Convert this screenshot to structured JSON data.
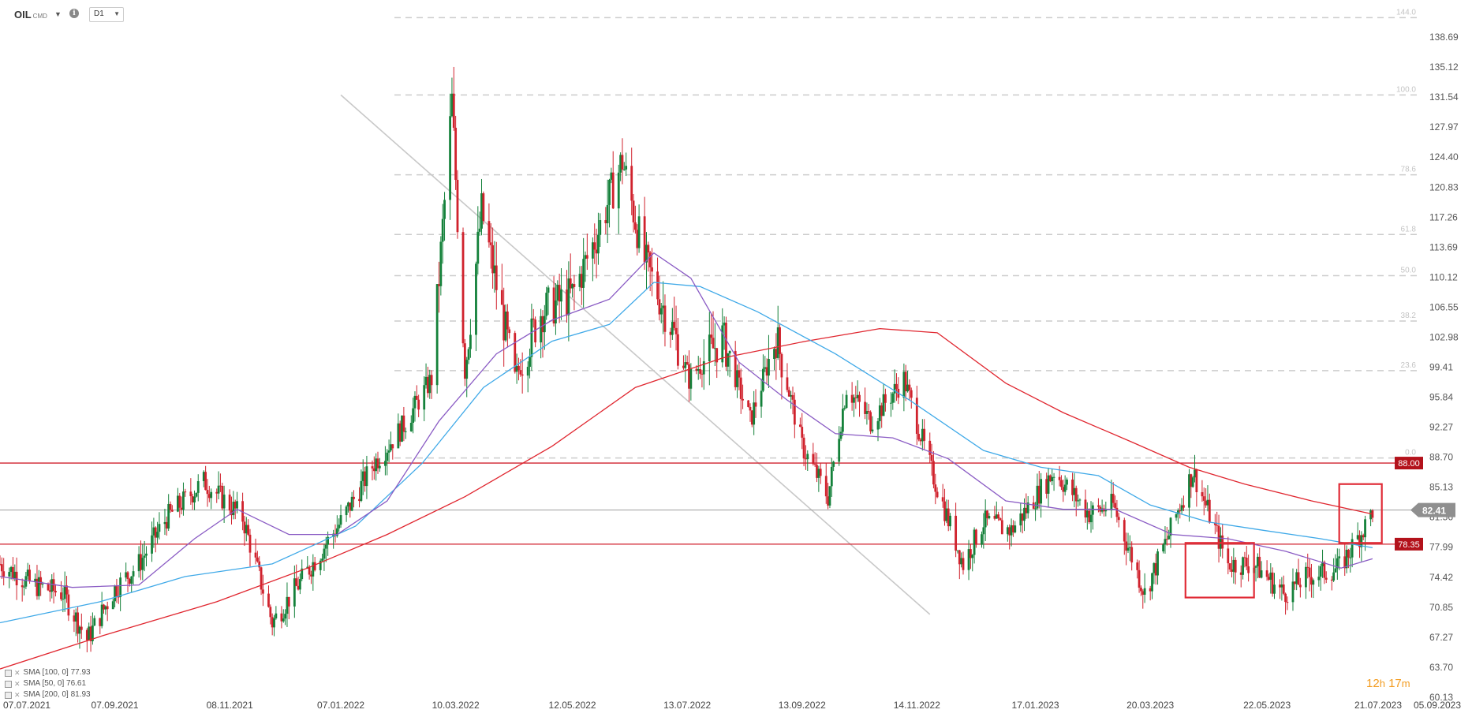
{
  "header": {
    "symbol": "OIL",
    "symbol_sub": "CMD",
    "timeframe": "D1"
  },
  "timer": {
    "hours": "12",
    "h_unit": "h",
    "minutes": "17",
    "m_unit": "m"
  },
  "colors": {
    "up": "#14813a",
    "down": "#d0222d",
    "sma50": "#8a5bc4",
    "sma100": "#3fa9e8",
    "sma200": "#e0262f",
    "hline": "#d0222d",
    "current": "#9e9e9e",
    "fib": "#cfcfcf"
  },
  "chart_data": {
    "type": "candlestick",
    "instrument": "OIL",
    "timeframe": "D1",
    "y_axis": {
      "ticks": [
        138.69,
        135.12,
        131.54,
        127.97,
        124.4,
        120.83,
        117.26,
        113.69,
        110.12,
        106.55,
        102.98,
        99.41,
        95.84,
        92.27,
        88.7,
        85.13,
        81.56,
        77.99,
        74.42,
        70.85,
        67.27,
        63.7,
        60.13
      ],
      "range": [
        60.13,
        138.69
      ]
    },
    "x_axis": {
      "ticks": [
        "07.07.2021",
        "07.09.2021",
        "08.11.2021",
        "07.01.2022",
        "10.03.2022",
        "12.05.2022",
        "13.07.2022",
        "13.09.2022",
        "14.11.2022",
        "17.01.2023",
        "20.03.2023",
        "22.05.2023",
        "21.07.2023",
        "05.09.2023"
      ],
      "range": [
        "2021-07-07",
        "2023-09-05"
      ]
    },
    "price_path": [
      [
        "2021-07-07",
        76.0
      ],
      [
        "2021-07-25",
        73.5
      ],
      [
        "2021-08-10",
        72.5
      ],
      [
        "2021-08-23",
        67.0
      ],
      [
        "2021-09-07",
        73.0
      ],
      [
        "2021-09-20",
        76.0
      ],
      [
        "2021-10-05",
        81.5
      ],
      [
        "2021-10-25",
        85.8
      ],
      [
        "2021-11-08",
        83.0
      ],
      [
        "2021-11-15",
        81.5
      ],
      [
        "2021-12-01",
        69.0
      ],
      [
        "2021-12-15",
        73.5
      ],
      [
        "2022-01-07",
        81.0
      ],
      [
        "2022-01-25",
        88.0
      ],
      [
        "2022-02-10",
        92.5
      ],
      [
        "2022-02-25",
        98.0
      ],
      [
        "2022-03-08",
        131.0
      ],
      [
        "2022-03-15",
        99.0
      ],
      [
        "2022-03-24",
        118.0
      ],
      [
        "2022-04-11",
        98.0
      ],
      [
        "2022-04-25",
        106.0
      ],
      [
        "2022-05-12",
        108.0
      ],
      [
        "2022-05-25",
        115.0
      ],
      [
        "2022-06-08",
        124.0
      ],
      [
        "2022-06-20",
        112.0
      ],
      [
        "2022-07-05",
        104.0
      ],
      [
        "2022-07-14",
        98.0
      ],
      [
        "2022-08-01",
        103.0
      ],
      [
        "2022-08-16",
        93.0
      ],
      [
        "2022-08-30",
        103.0
      ],
      [
        "2022-09-13",
        90.0
      ],
      [
        "2022-09-27",
        84.0
      ],
      [
        "2022-10-07",
        97.0
      ],
      [
        "2022-10-20",
        93.0
      ],
      [
        "2022-11-07",
        98.0
      ],
      [
        "2022-11-22",
        87.0
      ],
      [
        "2022-12-09",
        76.0
      ],
      [
        "2022-12-20",
        81.0
      ],
      [
        "2023-01-04",
        80.0
      ],
      [
        "2023-01-27",
        87.0
      ],
      [
        "2023-02-15",
        82.0
      ],
      [
        "2023-02-28",
        83.0
      ],
      [
        "2023-03-17",
        72.5
      ],
      [
        "2023-03-30",
        79.5
      ],
      [
        "2023-04-12",
        87.0
      ],
      [
        "2023-05-01",
        76.0
      ],
      [
        "2023-05-15",
        76.0
      ],
      [
        "2023-05-31",
        72.5
      ],
      [
        "2023-06-13",
        74.5
      ],
      [
        "2023-06-30",
        75.5
      ],
      [
        "2023-07-14",
        80.5
      ],
      [
        "2023-07-18",
        82.41
      ]
    ],
    "series": [
      {
        "name": "SMA [100, 0]",
        "last_value": "77.93"
      },
      {
        "name": "SMA [50, 0]",
        "last_value": "76.61"
      },
      {
        "name": "SMA [200, 0]",
        "last_value": "81.93"
      }
    ],
    "sma_paths": {
      "sma50": [
        [
          "2021-07-07",
          74.5
        ],
        [
          "2021-08-15",
          73.2
        ],
        [
          "2021-09-20",
          73.5
        ],
        [
          "2021-10-20",
          79.0
        ],
        [
          "2021-11-12",
          82.5
        ],
        [
          "2021-12-10",
          79.5
        ],
        [
          "2022-01-05",
          79.5
        ],
        [
          "2022-02-01",
          83.5
        ],
        [
          "2022-03-01",
          93.0
        ],
        [
          "2022-04-01",
          101.0
        ],
        [
          "2022-05-01",
          105.0
        ],
        [
          "2022-06-01",
          107.5
        ],
        [
          "2022-06-25",
          113.0
        ],
        [
          "2022-07-15",
          110.0
        ],
        [
          "2022-08-10",
          100.0
        ],
        [
          "2022-09-05",
          95.5
        ],
        [
          "2022-10-01",
          91.5
        ],
        [
          "2022-11-01",
          91.0
        ],
        [
          "2022-12-01",
          88.5
        ],
        [
          "2023-01-01",
          83.5
        ],
        [
          "2023-02-01",
          82.5
        ],
        [
          "2023-03-01",
          82.5
        ],
        [
          "2023-04-01",
          79.5
        ],
        [
          "2023-05-01",
          79.0
        ],
        [
          "2023-06-01",
          77.5
        ],
        [
          "2023-07-01",
          75.5
        ],
        [
          "2023-07-18",
          76.61
        ]
      ],
      "sma100": [
        [
          "2021-07-07",
          69.0
        ],
        [
          "2021-08-30",
          71.5
        ],
        [
          "2021-10-15",
          74.5
        ],
        [
          "2021-12-01",
          76.0
        ],
        [
          "2022-01-15",
          80.5
        ],
        [
          "2022-02-20",
          88.0
        ],
        [
          "2022-03-25",
          97.0
        ],
        [
          "2022-05-01",
          102.5
        ],
        [
          "2022-06-01",
          104.5
        ],
        [
          "2022-06-25",
          109.5
        ],
        [
          "2022-07-20",
          109.0
        ],
        [
          "2022-08-20",
          106.0
        ],
        [
          "2022-10-01",
          101.0
        ],
        [
          "2022-11-10",
          95.5
        ],
        [
          "2022-12-20",
          89.5
        ],
        [
          "2023-01-20",
          87.5
        ],
        [
          "2023-02-20",
          86.5
        ],
        [
          "2023-03-20",
          83.0
        ],
        [
          "2023-04-20",
          81.0
        ],
        [
          "2023-05-20",
          80.0
        ],
        [
          "2023-06-20",
          79.0
        ],
        [
          "2023-07-18",
          77.93
        ]
      ],
      "sma200": [
        [
          "2021-07-07",
          63.5
        ],
        [
          "2021-09-01",
          67.5
        ],
        [
          "2021-11-01",
          71.5
        ],
        [
          "2021-12-20",
          75.5
        ],
        [
          "2022-02-01",
          79.5
        ],
        [
          "2022-03-15",
          84.0
        ],
        [
          "2022-05-01",
          90.0
        ],
        [
          "2022-06-15",
          97.0
        ],
        [
          "2022-08-01",
          100.5
        ],
        [
          "2022-09-15",
          102.5
        ],
        [
          "2022-10-25",
          104.0
        ],
        [
          "2022-11-25",
          103.5
        ],
        [
          "2023-01-01",
          97.5
        ],
        [
          "2023-02-01",
          94.0
        ],
        [
          "2023-03-10",
          90.5
        ],
        [
          "2023-04-10",
          87.5
        ],
        [
          "2023-05-10",
          85.5
        ],
        [
          "2023-06-15",
          83.5
        ],
        [
          "2023-07-18",
          81.93
        ]
      ]
    },
    "horizontal_levels": [
      {
        "price": 88.0,
        "label": "88.00"
      },
      {
        "price": 78.35,
        "label": "78.35"
      }
    ],
    "current_price": {
      "price": 82.41,
      "label": "82.41"
    },
    "fibonacci": {
      "levels": [
        {
          "ratio": "144.0",
          "price": 141.0
        },
        {
          "ratio": "100.0",
          "price": 131.8
        },
        {
          "ratio": "78.6",
          "price": 122.3
        },
        {
          "ratio": "61.8",
          "price": 115.2
        },
        {
          "ratio": "50.0",
          "price": 110.3
        },
        {
          "ratio": "38.2",
          "price": 104.9
        },
        {
          "ratio": "23.6",
          "price": 99.0
        },
        {
          "ratio": "0.0",
          "price": 88.6
        }
      ],
      "start": [
        "2022-01-07",
        131.8
      ],
      "end": [
        "2022-11-21",
        70.0
      ]
    },
    "highlight_boxes": [
      {
        "from": "2023-04-08",
        "to": "2023-05-15",
        "high": 78.5,
        "low": 72.0
      },
      {
        "from": "2023-06-30",
        "to": "2023-07-23",
        "high": 85.5,
        "low": 78.5
      }
    ]
  }
}
